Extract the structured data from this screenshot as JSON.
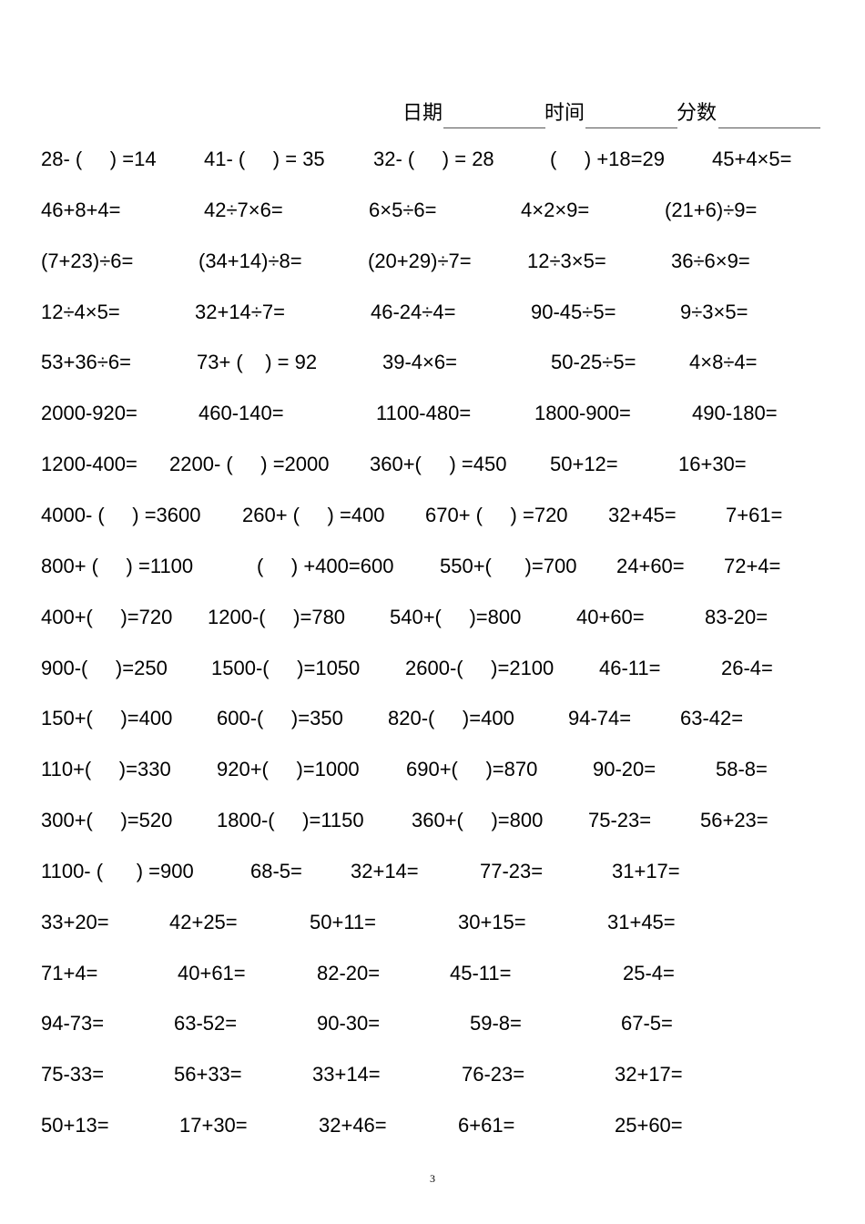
{
  "header": {
    "date_label": "日期",
    "time_label": "时间",
    "score_label": "分数"
  },
  "rows": [
    [
      "28- (     ) =14",
      "41- (     ) = 35",
      "32- (     ) = 28",
      "(     ) +18=29",
      "45+4×5="
    ],
    [
      "46+8+4=",
      "42÷7×6=",
      "6×5÷6=",
      "4×2×9=",
      "(21+6)÷9="
    ],
    [
      "(7+23)÷6=",
      "(34+14)÷8=",
      "(20+29)÷7=",
      "12÷3×5=",
      "36÷6×9="
    ],
    [
      "12÷4×5=",
      "32+14÷7=",
      "46-24÷4=",
      "90-45÷5=",
      "9÷3×5="
    ],
    [
      "53+36÷6=",
      "73+ (    ) = 92",
      "39-4×6=",
      "50-25÷5=",
      "4×8÷4="
    ],
    [
      "2000-920=",
      "460-140=",
      "1100-480=",
      "1800-900=",
      "490-180="
    ],
    [
      "1200-400=",
      "2200- (     ) =2000",
      "360+(     ) =450",
      "50+12=",
      "16+30="
    ],
    [
      "4000- (     ) =3600",
      "260+ (     ) =400",
      "670+ (     ) =720",
      "32+45=",
      "7+61="
    ],
    [
      "800+ (     ) =1100",
      "(     ) +400=600",
      "550+(      )=700",
      "24+60=",
      "72+4="
    ],
    [
      "400+(     )=720",
      "1200-(     )=780",
      "540+(     )=800",
      "40+60=",
      "83-20="
    ],
    [
      "900-(     )=250",
      "1500-(     )=1050",
      "2600-(     )=2100",
      "46-11=",
      "26-4="
    ],
    [
      "150+(     )=400",
      "600-(     )=350",
      "820-(     )=400",
      "94-74=",
      "63-42="
    ],
    [
      "110+(     )=330",
      "920+(     )=1000",
      "690+(     )=870",
      "90-20=",
      "58-8="
    ],
    [
      "300+(     )=520",
      "1800-(     )=1150",
      "360+(     )=800",
      "75-23=",
      "56+23="
    ],
    [
      "1100- (      ) =900",
      "68-5=",
      "32+14=",
      "77-23=",
      "31+17="
    ],
    [
      "33+20=",
      "42+25=",
      "50+11=",
      "30+15=",
      "31+45="
    ],
    [
      "71+4=",
      "40+61=",
      "82-20=",
      "45-11=",
      "25-4="
    ],
    [
      "94-73=",
      "63-52=",
      "90-30=",
      "59-8=",
      "67-5="
    ],
    [
      "75-33=",
      "56+33=",
      "33+14=",
      "76-23=",
      "32+17="
    ],
    [
      "50+13=",
      "17+30=",
      "32+46=",
      "6+61=",
      "25+60="
    ]
  ],
  "page_number": "3"
}
